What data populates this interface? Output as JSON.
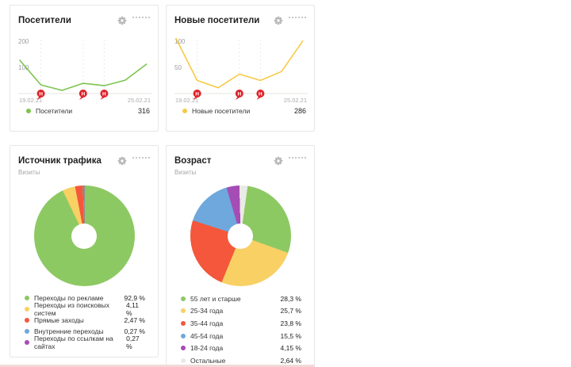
{
  "page": {
    "bottom_strip_color": "#f3d8d8"
  },
  "chart_data": [
    {
      "id": "visitors",
      "type": "line",
      "title": "Посетители",
      "x_start": "19.02.21",
      "x_end": "25.02.21",
      "points": 7,
      "values": [
        127,
        33,
        12,
        39,
        30,
        51,
        112
      ],
      "y_ticks": [
        100,
        200
      ],
      "ylim": [
        0,
        230
      ],
      "line_color": "#7cc44f",
      "note_markers": {
        "day_indices": [
          1,
          3,
          4
        ],
        "glyph": "Н",
        "color": "#df2128"
      },
      "legend_label": "Посетители",
      "total_display": "316",
      "grid": "vertical-dashed-at-notes",
      "legend_position": "bottom"
    },
    {
      "id": "new_visitors",
      "type": "line",
      "title": "Новые посетители",
      "x_start": "19.02.21",
      "x_end": "25.02.21",
      "points": 7,
      "values": [
        105,
        25,
        11,
        37,
        25,
        42,
        100
      ],
      "y_ticks": [
        50,
        100
      ],
      "ylim": [
        0,
        115
      ],
      "line_color": "#f7ca45",
      "note_markers": {
        "day_indices": [
          1,
          3,
          4
        ],
        "glyph": "Н",
        "color": "#df2128"
      },
      "legend_label": "Новые посетители",
      "total_display": "286",
      "grid": "vertical-dashed-at-notes",
      "legend_position": "bottom"
    },
    {
      "id": "traffic",
      "type": "donut",
      "title": "Источник трафика",
      "subtitle": "Визиты",
      "start_angle_deg": 0,
      "slices": [
        {
          "label": "Переходы по рекламе",
          "value": 92.9,
          "display": "92,9 %",
          "color": "#8dc963"
        },
        {
          "label": "Переходы из поисковых систем",
          "value": 4.11,
          "display": "4,11 %",
          "color": "#f8d064"
        },
        {
          "label": "Прямые заходы",
          "value": 2.47,
          "display": "2,47 %",
          "color": "#f4573b"
        },
        {
          "label": "Внутренние переходы",
          "value": 0.27,
          "display": "0,27 %",
          "color": "#6fa8dc"
        },
        {
          "label": "Переходы по ссылкам на сайтах",
          "value": 0.27,
          "display": "0,27 %",
          "color": "#a64cb5"
        }
      ],
      "legend_position": "bottom"
    },
    {
      "id": "age",
      "type": "donut",
      "title": "Возраст",
      "subtitle": "Визиты",
      "start_angle_deg": 8,
      "slices": [
        {
          "label": "55 лет и старше",
          "value": 28.3,
          "display": "28,3 %",
          "color": "#8dc963"
        },
        {
          "label": "25-34 года",
          "value": 25.7,
          "display": "25,7 %",
          "color": "#f8d064"
        },
        {
          "label": "35-44 года",
          "value": 23.8,
          "display": "23,8 %",
          "color": "#f4573b"
        },
        {
          "label": "45-54 года",
          "value": 15.5,
          "display": "15,5 %",
          "color": "#6fa8dc"
        },
        {
          "label": "18-24 года",
          "value": 4.15,
          "display": "4,15 %",
          "color": "#a64cb5"
        },
        {
          "label": "Остальные",
          "value": 2.64,
          "display": "2,64 %",
          "color": "#eaeae6"
        }
      ],
      "legend_position": "bottom"
    }
  ],
  "widget_icons": {
    "settings": "gear-icon",
    "move": "drag-handle-icon"
  }
}
